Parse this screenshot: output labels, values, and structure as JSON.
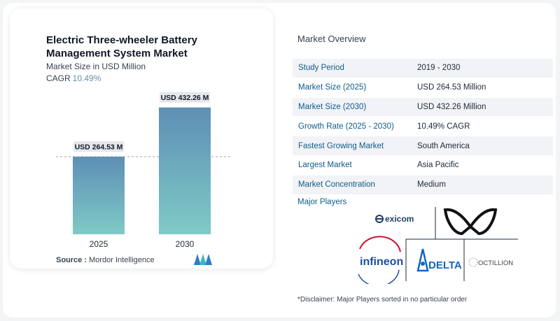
{
  "chart_data": {
    "type": "bar",
    "title": "Electric Three-wheeler Battery Management System Market",
    "subtitle": "Market Size in USD Million",
    "categories": [
      "2025",
      "2030"
    ],
    "values": [
      264.53,
      432.26
    ],
    "value_labels": [
      "USD 264.53 M",
      "USD 432.26 M"
    ],
    "ylim": [
      0,
      480
    ],
    "grid": false,
    "colors": {
      "bar_top": "#5e8fb5",
      "bar_bottom": "#7fcac6",
      "label_bg": "#e5e7eb"
    }
  },
  "cagr": {
    "label": "CAGR",
    "value": "10.49%"
  },
  "source": {
    "label": "Source :",
    "text": "Mordor Intelligence"
  },
  "overview": {
    "title": "Market Overview",
    "rows": [
      {
        "key": "Study Period",
        "value": "2019 - 2030"
      },
      {
        "key": "Market Size (2025)",
        "value": "USD 264.53 Million"
      },
      {
        "key": "Market Size (2030)",
        "value": "USD 432.26 Million"
      },
      {
        "key": "Growth Rate (2025 - 2030)",
        "value": "10.49% CAGR"
      },
      {
        "key": "Fastest Growing Market",
        "value": "South America"
      },
      {
        "key": "Largest Market",
        "value": "Asia Pacific"
      },
      {
        "key": "Market Concentration",
        "value": "Medium"
      }
    ]
  },
  "players": {
    "title": "Major Players",
    "logos": [
      {
        "name": "exicom",
        "text": "exicom",
        "color": "#1f3f5f",
        "icon": "exicom-icon"
      },
      {
        "name": "infineon",
        "text": "infineon",
        "color": "#1b4fa0",
        "icon": "infineon-logo"
      },
      {
        "name": "delta",
        "text": "DELTA",
        "color": "#1565c0",
        "icon": "delta-icon"
      },
      {
        "name": "octillion",
        "text": "OCTILLION",
        "color": "#444444",
        "icon": "octillion-icon"
      },
      {
        "name": "unnamed",
        "text": "",
        "color": "#111111",
        "icon": "wing-logo-icon"
      }
    ]
  },
  "disclaimer": "*Disclaimer: Major Players sorted in no particular order"
}
